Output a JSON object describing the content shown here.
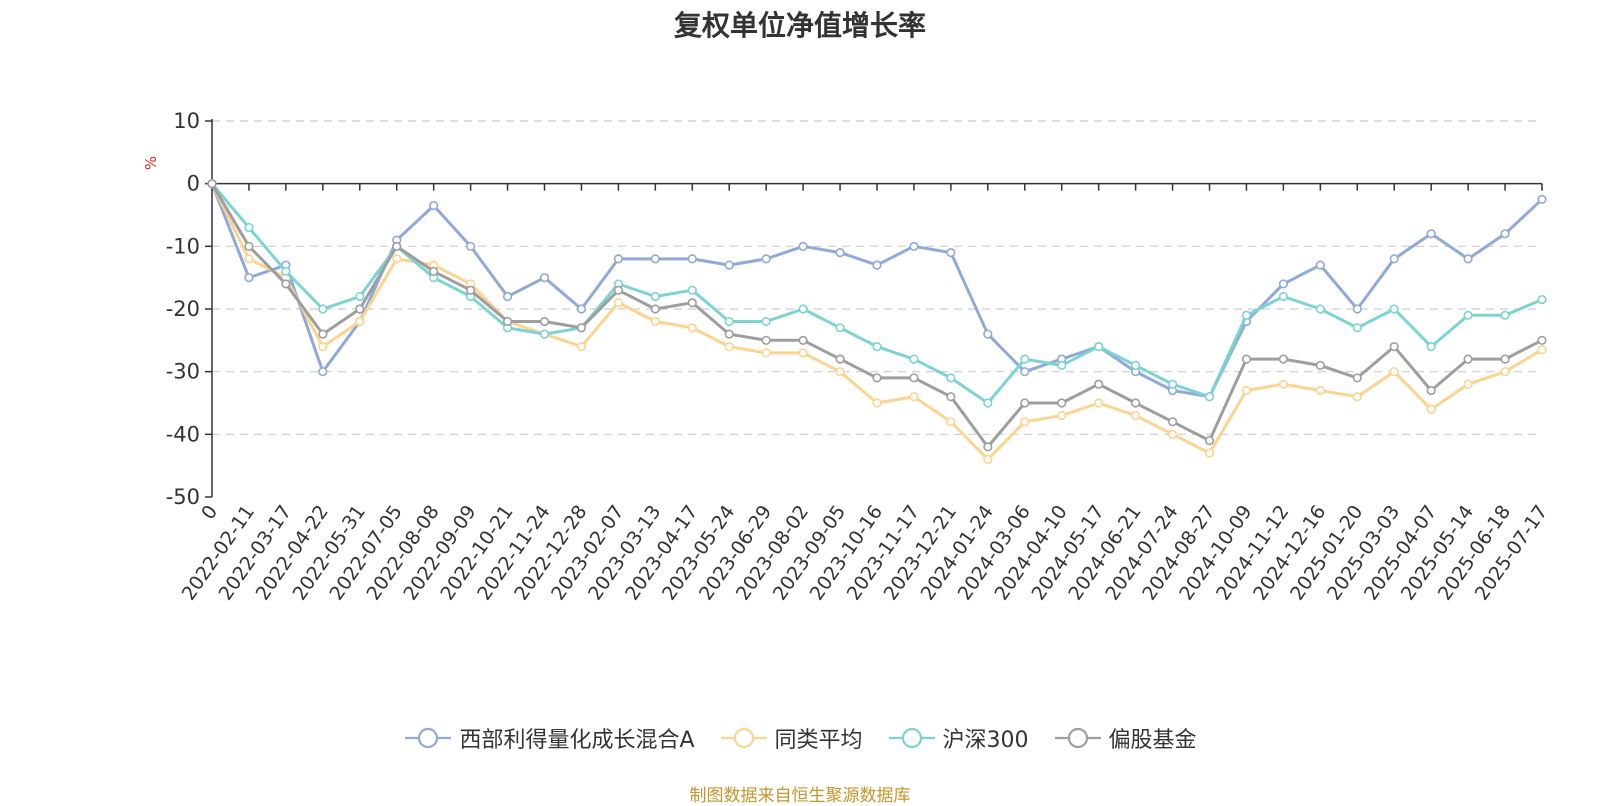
{
  "chart_data": {
    "type": "line",
    "title": "复权单位净值增长率",
    "ylabel": "%",
    "ylim": [
      -50,
      10
    ],
    "yticks": [
      10,
      0,
      -10,
      -20,
      -30,
      -40,
      -50
    ],
    "grid": true,
    "legend_position": "bottom",
    "x_labels": [
      "0",
      "2022-02-11",
      "2022-03-17",
      "2022-04-22",
      "2022-05-31",
      "2022-07-05",
      "2022-08-08",
      "2022-09-09",
      "2022-10-21",
      "2022-11-24",
      "2022-12-28",
      "2023-02-07",
      "2023-03-13",
      "2023-04-17",
      "2023-05-24",
      "2023-06-29",
      "2023-08-02",
      "2023-09-05",
      "2023-10-16",
      "2023-11-17",
      "2023-12-21",
      "2024-01-24",
      "2024-03-06",
      "2024-04-10",
      "2024-05-17",
      "2024-06-21",
      "2024-07-24",
      "2024-08-27",
      "2024-10-09",
      "2024-11-12",
      "2024-12-16",
      "2025-01-20",
      "2025-03-03",
      "2025-04-07",
      "2025-05-14",
      "2025-06-18",
      "2025-07-17"
    ],
    "series": [
      {
        "name": "西部利得量化成长混合A",
        "color": "#8fa9d9",
        "values": [
          0,
          -15,
          -13,
          -30,
          -22,
          -9,
          -3.5,
          -10,
          -18,
          -15,
          -20,
          -12,
          -12,
          -12,
          -13,
          -12,
          -10,
          -11,
          -13,
          -10,
          -11,
          -24,
          -30,
          -28,
          -26,
          -30,
          -33,
          -34,
          -22,
          -16,
          -13,
          -20,
          -12,
          -8,
          -12,
          -8,
          -2.5
        ]
      },
      {
        "name": "同类平均",
        "color": "#fcd38f",
        "values": [
          0,
          -12,
          -15,
          -26,
          -22,
          -12,
          -13,
          -16,
          -22,
          -24,
          -26,
          -19,
          -22,
          -23,
          -26,
          -27,
          -27,
          -30,
          -35,
          -34,
          -38,
          -44,
          -38,
          -37,
          -35,
          -37,
          -40,
          -43,
          -33,
          -32,
          -33,
          -34,
          -30,
          -36,
          -32,
          -30,
          -26.5
        ]
      },
      {
        "name": "沪深300",
        "color": "#7dd3d3",
        "values": [
          0,
          -7,
          -14,
          -20,
          -18,
          -10,
          -15,
          -18,
          -23,
          -24,
          -23,
          -16,
          -18,
          -17,
          -22,
          -22,
          -20,
          -23,
          -26,
          -28,
          -31,
          -35,
          -28,
          -29,
          -26,
          -29,
          -32,
          -34,
          -21,
          -18,
          -20,
          -23,
          -20,
          -26,
          -21,
          -21,
          -18.5
        ]
      },
      {
        "name": "偏股基金",
        "color": "#9e9e9e",
        "values": [
          0,
          -10,
          -16,
          -24,
          -20,
          -10,
          -14,
          -17,
          -22,
          -22,
          -23,
          -17,
          -20,
          -19,
          -24,
          -25,
          -25,
          -28,
          -31,
          -31,
          -34,
          -42,
          -35,
          -35,
          -32,
          -35,
          -38,
          -41,
          -28,
          -28,
          -29,
          -31,
          -26,
          -33,
          -28,
          -28,
          -25
        ]
      }
    ]
  },
  "legend": {
    "items": [
      "西部利得量化成长混合A",
      "同类平均",
      "沪深300",
      "偏股基金"
    ]
  },
  "source_note": "制图数据来自恒生聚源数据库"
}
